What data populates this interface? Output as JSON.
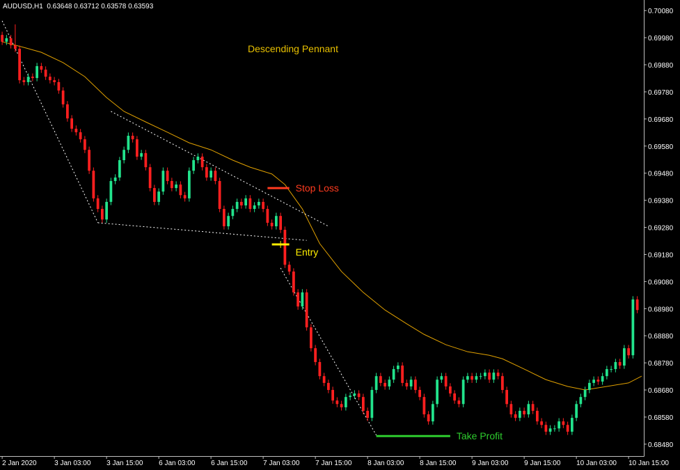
{
  "chart_data": {
    "type": "candlestick",
    "title": "AUDUSD,H1  0.63648 0.63712 0.63578 0.63593",
    "annotation": "Descending Pennant",
    "up_color": "#22e38c",
    "down_color": "#ff1f1f",
    "xlim": [
      -0.5,
      147.5
    ],
    "ylim": [
      0.68436,
      0.70119
    ],
    "yticks": [
      {
        "value": 0.7008,
        "label": "0.70080"
      },
      {
        "value": 0.6998,
        "label": "0.69980"
      },
      {
        "value": 0.6988,
        "label": "0.69880"
      },
      {
        "value": 0.6978,
        "label": "0.69780"
      },
      {
        "value": 0.6968,
        "label": "0.69680"
      },
      {
        "value": 0.6958,
        "label": "0.69580"
      },
      {
        "value": 0.6948,
        "label": "0.69480"
      },
      {
        "value": 0.6938,
        "label": "0.69380"
      },
      {
        "value": 0.6928,
        "label": "0.69280"
      },
      {
        "value": 0.6918,
        "label": "0.69180"
      },
      {
        "value": 0.6908,
        "label": "0.69080"
      },
      {
        "value": 0.6898,
        "label": "0.68980"
      },
      {
        "value": 0.6888,
        "label": "0.68880"
      },
      {
        "value": 0.6878,
        "label": "0.68780"
      },
      {
        "value": 0.6868,
        "label": "0.68680"
      },
      {
        "value": 0.6858,
        "label": "0.68580"
      },
      {
        "value": 0.6848,
        "label": "0.68480"
      }
    ],
    "xticks": [
      {
        "value": 0,
        "label": "2 Jan 2020"
      },
      {
        "value": 12,
        "label": "3 Jan 03:00"
      },
      {
        "value": 24,
        "label": "3 Jan 15:00"
      },
      {
        "value": 36,
        "label": "6 Jan 03:00"
      },
      {
        "value": 48,
        "label": "6 Jan 15:00"
      },
      {
        "value": 60,
        "label": "7 Jan 03:00"
      },
      {
        "value": 72,
        "label": "7 Jan 15:00"
      },
      {
        "value": 84,
        "label": "8 Jan 03:00"
      },
      {
        "value": 96,
        "label": "8 Jan 15:00"
      },
      {
        "value": 108,
        "label": "9 Jan 03:00"
      },
      {
        "value": 120,
        "label": "9 Jan 15:00"
      },
      {
        "value": 132,
        "label": "10 Jan 03:00"
      },
      {
        "value": 144,
        "label": "10 Jan 15:00"
      }
    ],
    "open": [
      0.6999,
      0.69965,
      0.69978,
      0.69952,
      0.69939,
      0.69823,
      0.69816,
      0.69836,
      0.69831,
      0.69875,
      0.69862,
      0.69836,
      0.69823,
      0.69816,
      0.69785,
      0.69734,
      0.69682,
      0.69644,
      0.69631,
      0.69605,
      0.69566,
      0.69489,
      0.69387,
      0.69348,
      0.69309,
      0.69374,
      0.69451,
      0.69464,
      0.69528,
      0.69566,
      0.69618,
      0.69605,
      0.69541,
      0.69554,
      0.69502,
      0.69425,
      0.69374,
      0.69412,
      0.69489,
      0.69451,
      0.69425,
      0.69438,
      0.69399,
      0.69387,
      0.69489,
      0.69528,
      0.69541,
      0.69502,
      0.69464,
      0.69489,
      0.69451,
      0.69348,
      0.69284,
      0.69322,
      0.69348,
      0.69374,
      0.69361,
      0.69387,
      0.69348,
      0.69361,
      0.69374,
      0.69348,
      0.69297,
      0.69284,
      0.69322,
      0.69271,
      0.69142,
      0.69117,
      0.6904,
      0.68988,
      0.6904,
      0.68911,
      0.68834,
      0.68783,
      0.68731,
      0.68706,
      0.6868,
      0.68641,
      0.68628,
      0.68616,
      0.68654,
      0.68659,
      0.68667,
      0.68654,
      0.68603,
      0.68577,
      0.6868,
      0.68731,
      0.68706,
      0.68693,
      0.68718,
      0.68757,
      0.6877,
      0.68706,
      0.68693,
      0.68718,
      0.6868,
      0.68654,
      0.6859,
      0.68564,
      0.68628,
      0.68718,
      0.68731,
      0.68693,
      0.68667,
      0.68641,
      0.68628,
      0.68718,
      0.68731,
      0.68718,
      0.68731,
      0.68731,
      0.68744,
      0.68718,
      0.68744,
      0.68731,
      0.6868,
      0.68628,
      0.6859,
      0.68577,
      0.68603,
      0.6859,
      0.68628,
      0.68603,
      0.68564,
      0.68551,
      0.68526,
      0.68538,
      0.68538,
      0.68564,
      0.68551,
      0.68526,
      0.68577,
      0.68628,
      0.68654,
      0.6868,
      0.68706,
      0.68718,
      0.68711,
      0.68731,
      0.68757,
      0.68757,
      0.68783,
      0.6877,
      0.68834,
      0.68808,
      0.69014
    ],
    "high": [
      0.70002,
      0.6999,
      0.6999,
      0.70029,
      0.69951,
      0.69835,
      0.69848,
      0.69848,
      0.69887,
      0.69887,
      0.69874,
      0.69848,
      0.69835,
      0.69828,
      0.69797,
      0.69746,
      0.69694,
      0.69656,
      0.69643,
      0.69617,
      0.69578,
      0.69501,
      0.69399,
      0.6936,
      0.69386,
      0.69463,
      0.69476,
      0.6954,
      0.69578,
      0.6963,
      0.6963,
      0.69617,
      0.69566,
      0.69566,
      0.69514,
      0.69437,
      0.69424,
      0.69501,
      0.69501,
      0.69463,
      0.6945,
      0.6945,
      0.69411,
      0.69501,
      0.6954,
      0.69553,
      0.69553,
      0.69514,
      0.69501,
      0.69501,
      0.69463,
      0.6936,
      0.69334,
      0.6936,
      0.69386,
      0.69386,
      0.69399,
      0.69399,
      0.69373,
      0.69386,
      0.69386,
      0.6936,
      0.69309,
      0.69334,
      0.69334,
      0.69283,
      0.69154,
      0.69129,
      0.69052,
      0.69052,
      0.69052,
      0.68923,
      0.68846,
      0.68795,
      0.68743,
      0.68718,
      0.68692,
      0.68653,
      0.6864,
      0.68666,
      0.68671,
      0.68679,
      0.68679,
      0.68666,
      0.68615,
      0.68692,
      0.68743,
      0.68743,
      0.68718,
      0.6873,
      0.68769,
      0.68782,
      0.68782,
      0.68718,
      0.6873,
      0.6873,
      0.68692,
      0.68666,
      0.68602,
      0.6864,
      0.6873,
      0.68743,
      0.68743,
      0.68705,
      0.68679,
      0.68653,
      0.6873,
      0.68743,
      0.68743,
      0.68743,
      0.68743,
      0.68756,
      0.68756,
      0.68756,
      0.68756,
      0.68743,
      0.68692,
      0.6864,
      0.68602,
      0.68615,
      0.68615,
      0.6864,
      0.6864,
      0.68615,
      0.68576,
      0.68563,
      0.6855,
      0.6855,
      0.68576,
      0.68576,
      0.68563,
      0.68589,
      0.6864,
      0.68666,
      0.68692,
      0.68718,
      0.6873,
      0.6873,
      0.68743,
      0.68769,
      0.68769,
      0.68795,
      0.68795,
      0.68846,
      0.68846,
      0.69026,
      0.69026
    ],
    "low": [
      0.69953,
      0.69953,
      0.6994,
      0.69927,
      0.69811,
      0.69804,
      0.69804,
      0.69819,
      0.69819,
      0.6985,
      0.69824,
      0.69811,
      0.69804,
      0.69773,
      0.69722,
      0.6967,
      0.69632,
      0.69619,
      0.69593,
      0.69554,
      0.69477,
      0.69375,
      0.69336,
      0.69297,
      0.69297,
      0.69362,
      0.69439,
      0.69452,
      0.69516,
      0.69554,
      0.69593,
      0.69529,
      0.69529,
      0.6949,
      0.69413,
      0.69362,
      0.69362,
      0.694,
      0.69439,
      0.69413,
      0.69413,
      0.69387,
      0.69375,
      0.69375,
      0.69477,
      0.69516,
      0.6949,
      0.69452,
      0.69452,
      0.69439,
      0.69336,
      0.69272,
      0.69272,
      0.6931,
      0.69336,
      0.69349,
      0.69349,
      0.69336,
      0.69336,
      0.69349,
      0.69336,
      0.69285,
      0.69272,
      0.69272,
      0.69259,
      0.6913,
      0.69105,
      0.69028,
      0.68976,
      0.68976,
      0.68899,
      0.68822,
      0.68771,
      0.68719,
      0.68694,
      0.68668,
      0.68629,
      0.68616,
      0.68604,
      0.68604,
      0.68642,
      0.68647,
      0.68642,
      0.68591,
      0.68565,
      0.68565,
      0.68668,
      0.68694,
      0.68681,
      0.68681,
      0.68706,
      0.68745,
      0.68694,
      0.68681,
      0.68681,
      0.68668,
      0.68642,
      0.68578,
      0.68552,
      0.68552,
      0.68616,
      0.68706,
      0.68681,
      0.68655,
      0.68629,
      0.68616,
      0.68616,
      0.68706,
      0.68706,
      0.68706,
      0.68719,
      0.68719,
      0.68706,
      0.68706,
      0.68719,
      0.68668,
      0.68616,
      0.68578,
      0.68565,
      0.68565,
      0.68578,
      0.68578,
      0.68591,
      0.68552,
      0.68539,
      0.68514,
      0.68514,
      0.68526,
      0.68526,
      0.68539,
      0.68514,
      0.68514,
      0.68565,
      0.68616,
      0.68642,
      0.68668,
      0.68694,
      0.68699,
      0.68699,
      0.68719,
      0.68745,
      0.68745,
      0.68758,
      0.68758,
      0.68796,
      0.68796,
      0.68963
    ],
    "close": [
      0.69965,
      0.69978,
      0.69952,
      0.69939,
      0.69823,
      0.69816,
      0.69836,
      0.69831,
      0.69875,
      0.69862,
      0.69836,
      0.69823,
      0.69816,
      0.69785,
      0.69734,
      0.69682,
      0.69644,
      0.69631,
      0.69605,
      0.69566,
      0.69489,
      0.69387,
      0.69348,
      0.69309,
      0.69374,
      0.69451,
      0.69464,
      0.69528,
      0.69566,
      0.69618,
      0.69605,
      0.69541,
      0.69554,
      0.69502,
      0.69425,
      0.69374,
      0.69412,
      0.69489,
      0.69451,
      0.69425,
      0.69438,
      0.69399,
      0.69387,
      0.69489,
      0.69528,
      0.69541,
      0.69502,
      0.69464,
      0.69489,
      0.69451,
      0.69348,
      0.69284,
      0.69322,
      0.69348,
      0.69374,
      0.69361,
      0.69387,
      0.69348,
      0.69361,
      0.69374,
      0.69348,
      0.69297,
      0.69284,
      0.69322,
      0.69271,
      0.69142,
      0.69117,
      0.6904,
      0.68988,
      0.6904,
      0.68911,
      0.68834,
      0.68783,
      0.68731,
      0.68706,
      0.6868,
      0.68641,
      0.68628,
      0.68616,
      0.68654,
      0.68659,
      0.68667,
      0.68654,
      0.68603,
      0.68577,
      0.6868,
      0.68731,
      0.68706,
      0.68693,
      0.68718,
      0.68757,
      0.6877,
      0.68706,
      0.68693,
      0.68718,
      0.6868,
      0.68654,
      0.6859,
      0.68564,
      0.68628,
      0.68718,
      0.68731,
      0.68693,
      0.68667,
      0.68641,
      0.68628,
      0.68718,
      0.68731,
      0.68718,
      0.68731,
      0.68731,
      0.68744,
      0.68718,
      0.68744,
      0.68731,
      0.6868,
      0.68628,
      0.6859,
      0.68577,
      0.68603,
      0.6859,
      0.68628,
      0.68603,
      0.68564,
      0.68551,
      0.68526,
      0.68538,
      0.68538,
      0.68564,
      0.68551,
      0.68526,
      0.68577,
      0.68628,
      0.68654,
      0.6868,
      0.68706,
      0.68718,
      0.68711,
      0.68731,
      0.68757,
      0.68757,
      0.68783,
      0.6877,
      0.68834,
      0.68808,
      0.69014,
      0.68975
    ],
    "ma": {
      "color": "#e0a000",
      "x": [
        0,
        5,
        9,
        14,
        19,
        24,
        28,
        33,
        38,
        43,
        48,
        53,
        57,
        62,
        65,
        69,
        73,
        78,
        83,
        88,
        93,
        97,
        102,
        107,
        112,
        115,
        120,
        125,
        130,
        134,
        139,
        144,
        147
      ],
      "values": [
        0.69965,
        0.69944,
        0.69926,
        0.69888,
        0.69836,
        0.69759,
        0.69708,
        0.69669,
        0.69631,
        0.69592,
        0.69566,
        0.69528,
        0.69502,
        0.69477,
        0.69438,
        0.69348,
        0.6922,
        0.69117,
        0.6904,
        0.68975,
        0.68924,
        0.68885,
        0.68847,
        0.68821,
        0.68808,
        0.68795,
        0.68757,
        0.68718,
        0.68693,
        0.6868,
        0.68693,
        0.68706,
        0.68731
      ]
    },
    "trendlines": [
      {
        "x": [
          0,
          22
        ],
        "values": [
          0.70042,
          0.69297
        ]
      },
      {
        "x": [
          22,
          70
        ],
        "values": [
          0.69297,
          0.69232
        ]
      },
      {
        "x": [
          25,
          75
        ],
        "values": [
          0.69708,
          0.69284
        ]
      },
      {
        "x": [
          64,
          86
        ],
        "values": [
          0.6913,
          0.68513
        ]
      }
    ],
    "levels": [
      {
        "label": "Stop Loss",
        "value": 0.69425,
        "x": [
          61,
          66
        ],
        "color": "#ff3b1f"
      },
      {
        "label": "Entry",
        "value": 0.69217,
        "x": [
          62,
          66
        ],
        "color": "#ffee00"
      },
      {
        "label": "Take Profit",
        "value": 0.6851,
        "x": [
          86,
          103
        ],
        "color": "#2ecc2e"
      }
    ]
  }
}
